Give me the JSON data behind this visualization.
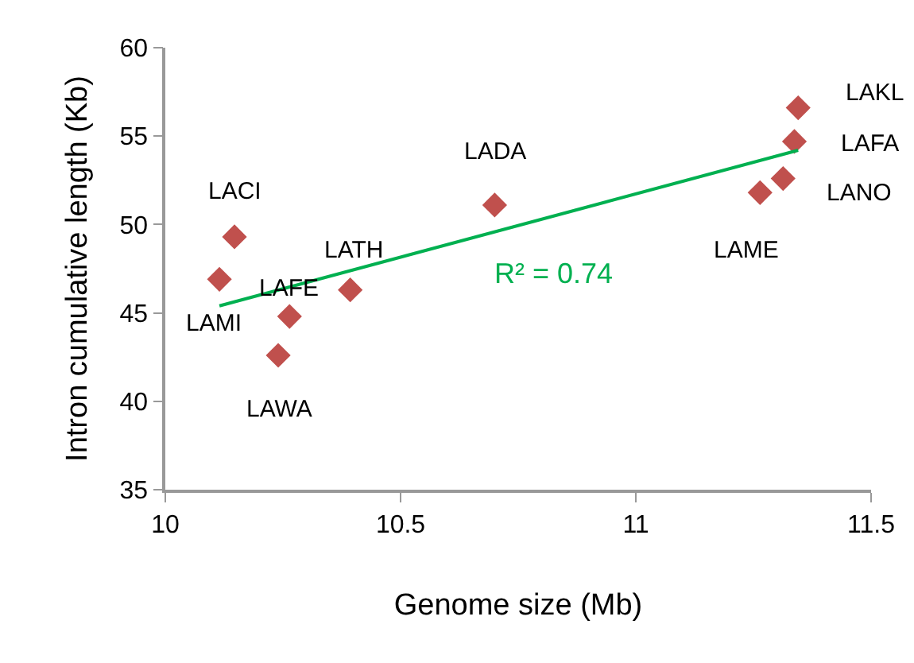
{
  "chart_data": {
    "type": "scatter",
    "xlabel": "Genome size (Mb)",
    "ylabel": "Intron cumulative length (Kb)",
    "xlim": [
      10,
      11.5
    ],
    "xticks": [
      10,
      10.5,
      11,
      11.5
    ],
    "ylim": [
      35,
      60
    ],
    "yticks": [
      35,
      40,
      45,
      50,
      55,
      60
    ],
    "marker": "diamond",
    "series": [
      {
        "color": "#c0504d",
        "x": [
          10.147,
          10.115,
          10.264,
          10.24,
          10.393,
          10.7,
          11.345,
          11.337,
          11.313,
          11.264
        ],
        "values": [
          49.3,
          46.9,
          44.8,
          42.6,
          46.3,
          51.1,
          56.6,
          54.7,
          52.6,
          51.8
        ]
      },
      {
        "type": "line",
        "color": "#00b050",
        "marker": "none",
        "line_style": "solid",
        "x": [
          10.115,
          11.345
        ],
        "values": [
          45.4,
          54.2
        ]
      }
    ],
    "annotations": [
      {
        "text": "LACI",
        "x": 10.147,
        "y": 49.3
      },
      {
        "text": "LAMI",
        "x": 10.115,
        "y": 46.9
      },
      {
        "text": "LAFE",
        "x": 10.264,
        "y": 44.8
      },
      {
        "text": "LAWA",
        "x": 10.24,
        "y": 42.6
      },
      {
        "text": "LATH",
        "x": 10.393,
        "y": 46.3
      },
      {
        "text": "LADA",
        "x": 10.7,
        "y": 51.1
      },
      {
        "text": "LAKL",
        "x": 11.345,
        "y": 56.6
      },
      {
        "text": "LAFA",
        "x": 11.337,
        "y": 54.7
      },
      {
        "text": "LANO",
        "x": 11.313,
        "y": 52.6
      },
      {
        "text": "LAME",
        "x": 11.264,
        "y": 51.8
      },
      "R² = 0.74"
    ]
  }
}
